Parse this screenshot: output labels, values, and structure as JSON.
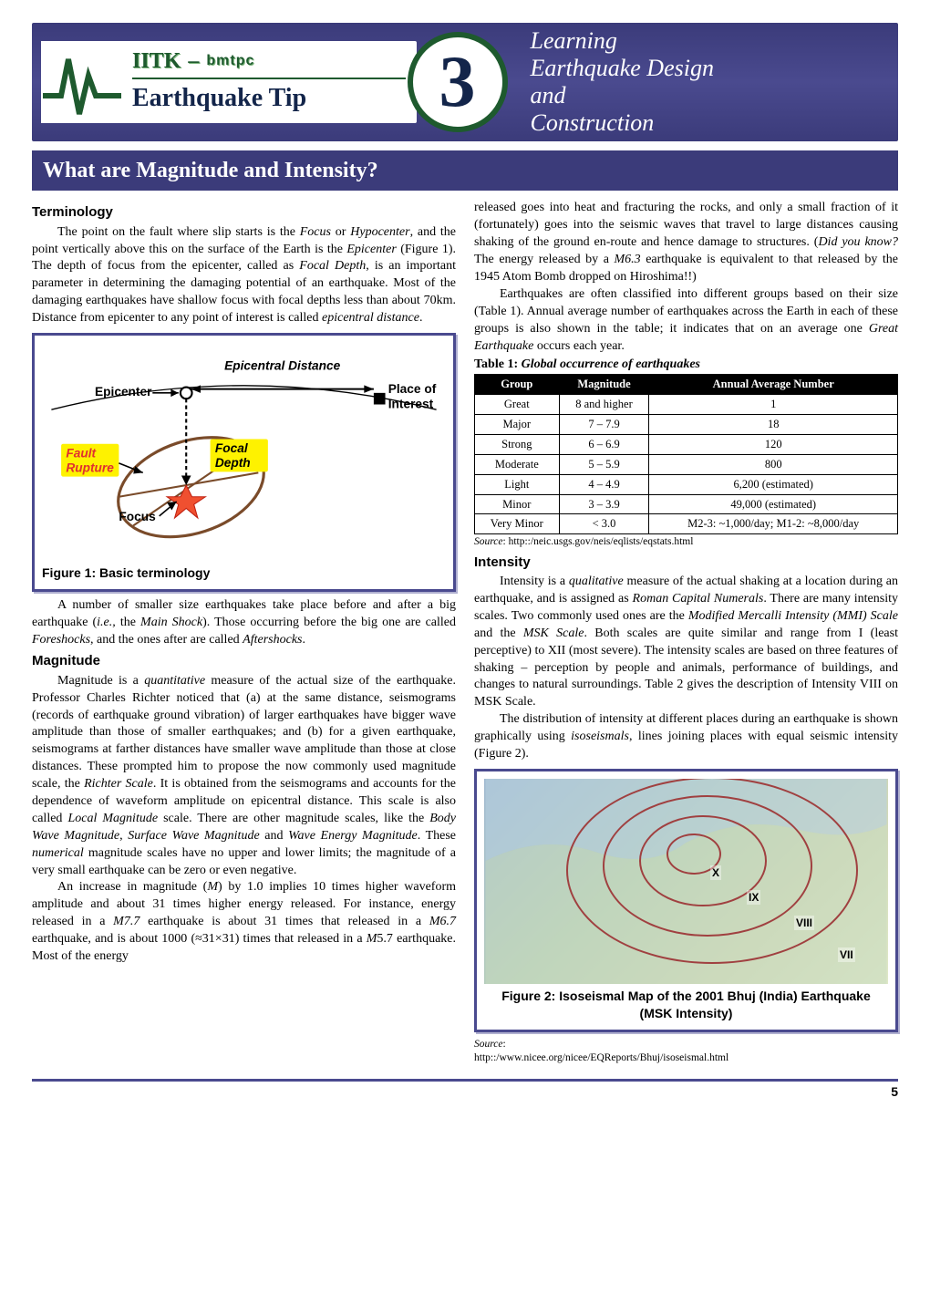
{
  "header": {
    "iitk": "IITK",
    "sep": "–",
    "bmtpc": "bmtpc",
    "eq_tip": "Earthquake Tip",
    "tip_number": "3",
    "right_lines": [
      "Learning",
      "Earthquake Design",
      "and",
      "Construction"
    ]
  },
  "title_bar": "What are Magnitude and Intensity?",
  "left": {
    "h1": "Terminology",
    "p1": "The point on the fault where slip starts is the <em class='term'>Focus</em> or <em class='term'>Hypocenter</em>, and the point vertically above this on the surface of the Earth is the <em class='term'>Epicenter</em> (Figure 1). The depth of focus from the epicenter, called as <em class='term'>Focal Depth</em>, is an important parameter in determining the damaging potential of an earthquake. Most of the damaging earthquakes have shallow focus with focal depths less than about 70km. Distance from epicenter to any point of interest is called <em class='term'>epicentral distance</em>.",
    "fig1": {
      "epicentral_distance": "Epicentral Distance",
      "epicenter": "Epicenter",
      "place_of": "Place of",
      "interest": "Interest",
      "fault": "Fault",
      "rupture": "Rupture",
      "focal": "Focal",
      "depth": "Depth",
      "focus": "Focus",
      "caption": "Figure 1: Basic terminology"
    },
    "p2": "A number of smaller size earthquakes take place before and after a big earthquake (<em class='term'>i.e.,</em> the <em class='term'>Main Shock</em>). Those occurring before the big one are called <em class='term'>Foreshocks</em>, and the ones after are called <em class='term'>Aftershocks</em>.",
    "h2": "Magnitude",
    "p3": "Magnitude is a <em class='term'>quantitative</em> measure of the actual size of the earthquake. Professor Charles Richter noticed that (a) at the same distance, seismograms (records of earthquake ground vibration) of larger earthquakes have bigger wave amplitude than those of smaller earthquakes; and (b) for a given earthquake, seismograms at farther distances have smaller wave amplitude than those at close distances. These prompted him to propose the now commonly used magnitude scale, the <em class='term'>Richter Scale</em>. It is obtained from the seismograms and accounts for the dependence of waveform amplitude on epicentral distance. This scale is also called <em class='term'>Local Magnitude</em> scale. There are other magnitude scales, like the <em class='term'>Body Wave Magnitude</em>, <em class='term'>Surface Wave Magnitude</em> and <em class='term'>Wave Energy Magnitude</em>. These <em class='term'>numerical</em> magnitude scales have no upper and lower limits; the magnitude of a very small earthquake can be zero or even negative.",
    "p4": "An increase in magnitude (<em class='term'>M</em>) by 1.0 implies 10 times higher waveform amplitude and about 31 times higher energy released. For instance, energy released in a <em class='term'>M7.7</em> earthquake is about 31 times that released in a <em class='term'>M6.7</em> earthquake, and is about 1000 (≈31×31) times that released in a <em class='term'>M</em>5.7 earthquake. Most of the energy"
  },
  "right": {
    "p1": "released goes into heat and fracturing the rocks, and only a small fraction of it (fortunately) goes into the seismic waves that travel to large distances causing shaking of the ground en-route and hence damage to structures. (<em class='term'>Did you know?</em> The energy released by a <em class='term'>M6.3</em> earthquake is equivalent to that released by the 1945 Atom Bomb dropped on Hiroshima!!)",
    "p2": "Earthquakes are often classified into different groups based on their size (Table 1). Annual average number of earthquakes across the Earth in each of these groups is also shown in the table; it indicates that on an average one <em class='term'>Great Earthquake</em> occurs each year.",
    "table1": {
      "title_a": "Table 1:",
      "title_b": "Global occurrence of earthquakes",
      "headers": [
        "Group",
        "Magnitude",
        "Annual Average Number"
      ],
      "rows": [
        [
          "Great",
          "8 and higher",
          "1"
        ],
        [
          "Major",
          "7 – 7.9",
          "18"
        ],
        [
          "Strong",
          "6 – 6.9",
          "120"
        ],
        [
          "Moderate",
          "5 – 5.9",
          "800"
        ],
        [
          "Light",
          "4 – 4.9",
          "6,200 (estimated)"
        ],
        [
          "Minor",
          "3 – 3.9",
          "49,000 (estimated)"
        ],
        [
          "Very Minor",
          "< 3.0",
          "M2-3: ~1,000/day;  M1-2: ~8,000/day"
        ]
      ],
      "source_label": "Source",
      "source_url": "http::/neic.usgs.gov/neis/eqlists/eqstats.html"
    },
    "h3": "Intensity",
    "p3": "Intensity is a <em class='term'>qualitative</em> measure of the actual shaking at a location during an earthquake, and is assigned as <em class='term'>Roman Capital Numerals</em>. There are many intensity scales. Two commonly used ones are the <em class='term'>Modified Mercalli Intensity (MMI) Scale</em> and the <em class='term'>MSK Scale</em>. Both scales are quite similar and range from I (least perceptive) to XII (most severe). The intensity scales are based on three features of shaking – perception by people and animals, performance of buildings, and changes to natural surroundings. Table 2 gives the description of Intensity VIII on MSK Scale.",
    "p4": "The distribution of intensity at different places during an earthquake is shown graphically using <em class='term'>isoseismals</em>, lines joining places with equal seismic intensity (Figure 2).",
    "fig2": {
      "labels": {
        "x": "X",
        "ix": "IX",
        "viii": "VIII",
        "vii": "VII"
      },
      "caption": "Figure 2: Isoseismal Map of the 2001 Bhuj (India) Earthquake (MSK Intensity)",
      "source_label": "Source",
      "source_url": "http::/www.nicee.org/nicee/EQReports/Bhuj/isoseismal.html"
    }
  },
  "page_number": "5",
  "colors": {
    "banner_bg": "#3b3b7a",
    "green": "#1e5a2e",
    "navy": "#13254a",
    "figure_border": "#4a4a8f",
    "yellow_box": "#fef200",
    "red": "#e03030",
    "brown": "#7a4b2a",
    "star": "#f05030"
  }
}
